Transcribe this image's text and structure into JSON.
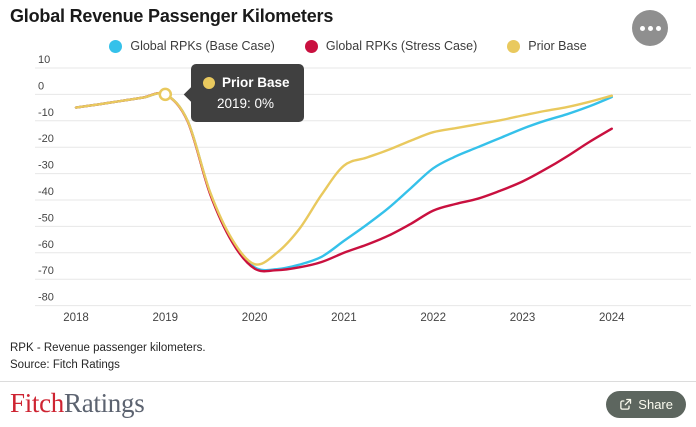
{
  "header": {
    "title": "Global Revenue Passenger Kilometers",
    "menu_button": "more options"
  },
  "tooltip": {
    "series": "Prior Base",
    "value_line": "2019: 0%",
    "dot_color": "#e9c95e",
    "background": "#404040"
  },
  "chart_data": {
    "type": "line",
    "title": "Global Revenue Passenger Kilometers",
    "unit": "%",
    "grid": true,
    "legend_position": "top",
    "xticks": [
      2018,
      2019,
      2020,
      2021,
      2022,
      2023,
      2024
    ],
    "yticks": [
      10,
      0,
      -10,
      -20,
      -30,
      -40,
      -50,
      -60,
      -70,
      -80
    ],
    "ylim": [
      -80,
      10
    ],
    "xlim": [
      2018,
      2024
    ],
    "x": [
      2018,
      2018.25,
      2018.5,
      2018.75,
      2019,
      2019.25,
      2019.5,
      2019.75,
      2020,
      2020.25,
      2020.5,
      2020.75,
      2021,
      2021.25,
      2021.5,
      2021.75,
      2022,
      2022.25,
      2022.5,
      2022.75,
      2023,
      2023.25,
      2023.5,
      2023.75,
      2024
    ],
    "series": [
      {
        "name": "Global RPKs (Base Case)",
        "color": "#35c1ea",
        "values": [
          -5,
          -3.8,
          -2.5,
          -1.2,
          0,
          -10,
          -37,
          -55.5,
          -65.5,
          -66.2,
          -64.5,
          -61.5,
          -55.5,
          -49.5,
          -43,
          -35.5,
          -28,
          -23.5,
          -20,
          -16.5,
          -13,
          -10,
          -7.5,
          -4.5,
          -1
        ]
      },
      {
        "name": "Global RPKs (Stress Case)",
        "color": "#c9103f",
        "values": [
          -5,
          -3.8,
          -2.5,
          -1.2,
          0,
          -10.2,
          -37.5,
          -56,
          -66,
          -66.6,
          -65.5,
          -63.5,
          -60,
          -57,
          -53.5,
          -49,
          -44,
          -41.5,
          -39.5,
          -36.5,
          -33,
          -28.5,
          -23.5,
          -18,
          -13
        ]
      },
      {
        "name": "Prior Base",
        "color": "#e9c95e",
        "values": [
          -5,
          -3.8,
          -2.5,
          -1.2,
          0,
          -10,
          -36.8,
          -55,
          -64.3,
          -60,
          -51,
          -38,
          -27,
          -24,
          -21,
          -17.5,
          -14.3,
          -12.8,
          -11.3,
          -9.8,
          -8,
          -6.3,
          -4.8,
          -2.8,
          -0.5
        ]
      }
    ],
    "highlight_point": {
      "series": "Prior Base",
      "x": 2019,
      "value": 0,
      "label": "2019: 0%"
    }
  },
  "footnotes": {
    "note": "RPK - Revenue passenger kilometers.",
    "source": "Source: Fitch Ratings"
  },
  "footer": {
    "logo_part1": "Fitch",
    "logo_part2": "Ratings",
    "share_label": "Share"
  },
  "colors": {
    "gridline": "#e7e7e7",
    "axis_text": "#444444",
    "share_button": "#5d665f",
    "menu_button": "#8f8f8f",
    "logo_red": "#ce2432",
    "logo_slate": "#5c6370"
  }
}
